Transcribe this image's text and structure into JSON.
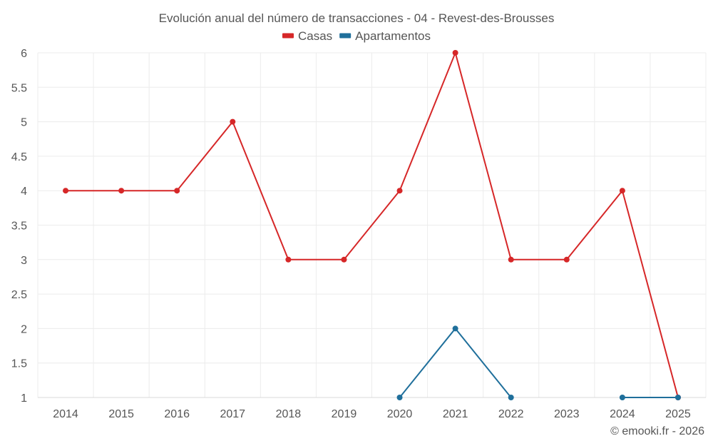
{
  "chart_data": {
    "type": "line",
    "title": "Evolución anual del número de transacciones - 04 - Revest-des-Brousses",
    "x": [
      "2014",
      "2015",
      "2016",
      "2017",
      "2018",
      "2019",
      "2020",
      "2021",
      "2022",
      "2023",
      "2024",
      "2025"
    ],
    "series": [
      {
        "name": "Casas",
        "color": "#d62728",
        "values": [
          4,
          4,
          4,
          5,
          3,
          3,
          4,
          6,
          3,
          3,
          4,
          1
        ]
      },
      {
        "name": "Apartamentos",
        "color": "#1f6f9b",
        "values": [
          null,
          null,
          null,
          null,
          null,
          null,
          1,
          2,
          1,
          null,
          1,
          1
        ]
      }
    ],
    "ylim": [
      1,
      6
    ],
    "yticks": [
      "1",
      "1.5",
      "2",
      "2.5",
      "3",
      "3.5",
      "4",
      "4.5",
      "5",
      "5.5",
      "6"
    ],
    "grid": true,
    "legend": "top-center",
    "credit": "© emooki.fr - 2026"
  }
}
